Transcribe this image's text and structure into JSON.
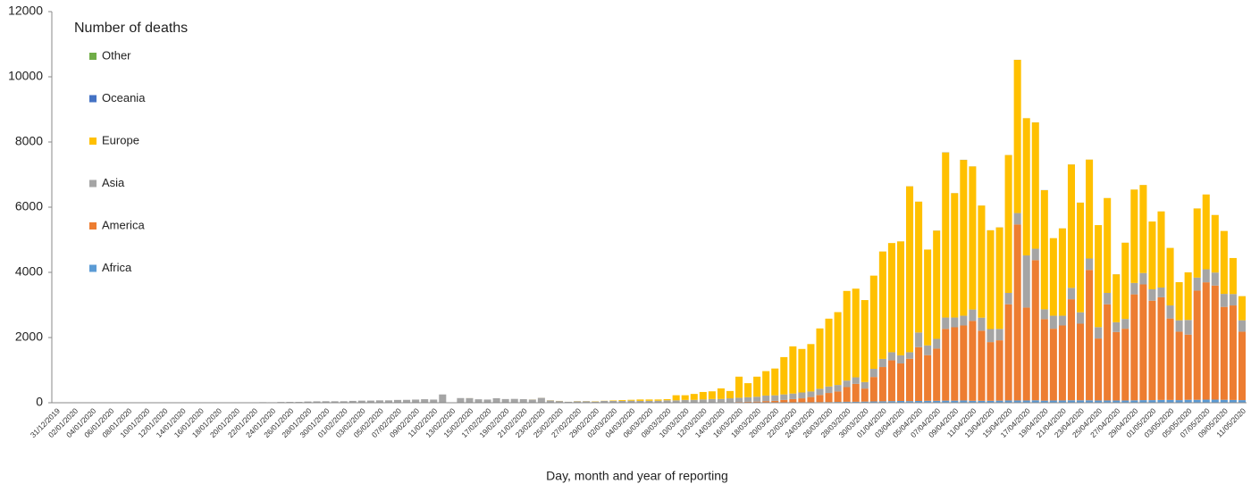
{
  "chart_data": {
    "type": "stacked-bar",
    "legend_title": "Number of deaths",
    "x_label": "Day, month and year of reporting",
    "ylim": [
      0,
      12000
    ],
    "yticks": [
      0,
      2000,
      4000,
      6000,
      8000,
      10000,
      12000
    ],
    "grid": false,
    "legend": "top-left",
    "categories": [
      "31/12/2019",
      null,
      "02/01/2020",
      null,
      "04/01/2020",
      null,
      "06/01/2020",
      null,
      "08/01/2020",
      null,
      "10/01/2020",
      null,
      "12/01/2020",
      null,
      "14/01/2020",
      null,
      "16/01/2020",
      null,
      "18/01/2020",
      null,
      "20/01/2020",
      null,
      "22/01/2020",
      null,
      "24/01/2020",
      null,
      "26/01/2020",
      null,
      "28/01/2020",
      null,
      "30/01/2020",
      null,
      "01/02/2020",
      null,
      "03/02/2020",
      null,
      "05/02/2020",
      null,
      "07/02/2020",
      null,
      "09/02/2020",
      null,
      "11/02/2020",
      null,
      "13/02/2020",
      null,
      "15/02/2020",
      null,
      "17/02/2020",
      null,
      "19/02/2020",
      null,
      "21/02/2020",
      null,
      "23/02/2020",
      null,
      "25/02/2020",
      null,
      "27/02/2020",
      null,
      "29/02/2020",
      null,
      "02/03/2020",
      null,
      "04/03/2020",
      null,
      "06/03/2020",
      null,
      "08/03/2020",
      null,
      "10/03/2020",
      null,
      "12/03/2020",
      null,
      "14/03/2020",
      null,
      "16/03/2020",
      null,
      "18/03/2020",
      null,
      "20/03/2020",
      null,
      "22/03/2020",
      null,
      "24/03/2020",
      null,
      "26/03/2020",
      null,
      "28/03/2020",
      null,
      "30/03/2020",
      null,
      "01/04/2020",
      null,
      "03/04/2020",
      null,
      "05/04/2020",
      null,
      "07/04/2020",
      null,
      "09/04/2020",
      null,
      "11/04/2020",
      null,
      "13/04/2020",
      null,
      "15/04/2020",
      null,
      "17/04/2020",
      null,
      "19/04/2020",
      null,
      "21/04/2020",
      null,
      "23/04/2020",
      null,
      "25/04/2020",
      null,
      "27/04/2020",
      null,
      "29/04/2020",
      null,
      "01/05/2020",
      null,
      "03/05/2020",
      null,
      "05/05/2020",
      null,
      "07/05/2020",
      null,
      "09/05/2020",
      null,
      "11/05/2020"
    ],
    "series": [
      {
        "name": "Africa",
        "color": "#5b9bd5",
        "values": [
          0,
          0,
          0,
          0,
          0,
          0,
          0,
          0,
          0,
          0,
          0,
          0,
          0,
          0,
          0,
          0,
          0,
          0,
          0,
          0,
          0,
          0,
          0,
          0,
          0,
          0,
          0,
          0,
          0,
          0,
          0,
          0,
          0,
          0,
          0,
          0,
          0,
          0,
          0,
          0,
          0,
          0,
          0,
          0,
          0,
          0,
          0,
          0,
          0,
          0,
          0,
          0,
          0,
          0,
          0,
          0,
          0,
          0,
          0,
          0,
          0,
          0,
          0,
          0,
          0,
          0,
          0,
          0,
          0,
          0,
          1,
          1,
          1,
          2,
          2,
          3,
          4,
          5,
          5,
          6,
          8,
          10,
          12,
          15,
          15,
          18,
          20,
          25,
          30,
          30,
          35,
          40,
          45,
          50,
          55,
          50,
          55,
          60,
          60,
          65,
          65,
          70,
          60,
          60,
          60,
          65,
          70,
          70,
          70,
          75,
          65,
          70,
          70,
          75,
          75,
          75,
          70,
          70,
          70,
          70,
          75,
          80,
          80,
          85,
          85,
          80,
          90,
          90,
          95,
          95,
          90,
          85,
          80
        ]
      },
      {
        "name": "America",
        "color": "#ed7d31",
        "values": [
          0,
          0,
          0,
          0,
          0,
          0,
          0,
          0,
          0,
          0,
          0,
          0,
          0,
          0,
          0,
          0,
          0,
          0,
          0,
          0,
          0,
          0,
          0,
          0,
          0,
          0,
          0,
          0,
          0,
          0,
          0,
          0,
          0,
          0,
          0,
          0,
          0,
          0,
          0,
          0,
          0,
          0,
          0,
          0,
          0,
          0,
          0,
          0,
          0,
          0,
          0,
          0,
          0,
          0,
          0,
          0,
          0,
          0,
          0,
          0,
          1,
          0,
          1,
          5,
          3,
          2,
          4,
          2,
          5,
          4,
          5,
          8,
          10,
          12,
          15,
          12,
          20,
          25,
          30,
          45,
          50,
          75,
          100,
          120,
          160,
          220,
          280,
          320,
          450,
          550,
          400,
          750,
          1050,
          1250,
          1150,
          1300,
          1650,
          1400,
          1600,
          2200,
          2250,
          2300,
          2450,
          2150,
          1800,
          1850,
          2950,
          5400,
          2850,
          4300,
          2500,
          2200,
          2300,
          3100,
          2350,
          4000,
          1900,
          2950,
          2100,
          2200,
          3250,
          3550,
          3050,
          3150,
          2500,
          2100,
          2000,
          3350,
          3600,
          3500,
          2850,
          2900,
          2100
        ]
      },
      {
        "name": "Asia",
        "color": "#a5a5a5",
        "values": [
          0,
          0,
          0,
          0,
          0,
          0,
          0,
          0,
          0,
          0,
          0,
          0,
          0,
          0,
          0,
          0,
          0,
          0,
          0,
          0,
          3,
          6,
          9,
          17,
          15,
          24,
          26,
          26,
          38,
          43,
          46,
          45,
          46,
          57,
          64,
          66,
          73,
          73,
          86,
          89,
          97,
          108,
          97,
          254,
          13,
          143,
          142,
          106,
          98,
          139,
          113,
          118,
          109,
          97,
          150,
          71,
          52,
          29,
          44,
          47,
          35,
          55,
          55,
          50,
          60,
          55,
          55,
          60,
          70,
          70,
          80,
          80,
          90,
          100,
          100,
          120,
          130,
          140,
          150,
          170,
          170,
          170,
          170,
          180,
          170,
          190,
          200,
          200,
          200,
          200,
          200,
          250,
          250,
          250,
          250,
          200,
          450,
          300,
          300,
          350,
          300,
          300,
          350,
          400,
          400,
          350,
          350,
          350,
          1600,
          350,
          300,
          400,
          300,
          350,
          350,
          350,
          350,
          350,
          300,
          300,
          350,
          350,
          350,
          300,
          400,
          350,
          450,
          400,
          400,
          400,
          400,
          350,
          350
        ]
      },
      {
        "name": "Europe",
        "color": "#ffc000",
        "values": [
          0,
          0,
          0,
          0,
          0,
          0,
          0,
          0,
          0,
          0,
          0,
          0,
          0,
          0,
          0,
          0,
          0,
          0,
          0,
          0,
          0,
          0,
          0,
          0,
          0,
          0,
          0,
          0,
          0,
          0,
          0,
          0,
          0,
          0,
          0,
          0,
          0,
          0,
          0,
          0,
          0,
          0,
          0,
          0,
          0,
          0,
          1,
          0,
          0,
          0,
          0,
          0,
          0,
          2,
          1,
          4,
          4,
          1,
          5,
          4,
          8,
          5,
          14,
          25,
          27,
          43,
          41,
          38,
          35,
          156,
          144,
          181,
          229,
          236,
          323,
          225,
          646,
          430,
          615,
          749,
          822,
          1145,
          1448,
          1335,
          1455,
          1852,
          2080,
          2235,
          2750,
          2720,
          2515,
          2860,
          3295,
          3350,
          3495,
          5090,
          4015,
          2940,
          3320,
          5065,
          3815,
          4780,
          4390,
          3440,
          3030,
          3115,
          4230,
          4700,
          4210,
          3875,
          3655,
          2380,
          2680,
          3785,
          3365,
          3035,
          3130,
          2910,
          1470,
          2340,
          2865,
          2700,
          2080,
          2335,
          1765,
          1170,
          1460,
          2120,
          2295,
          1765,
          1930,
          1105,
          740
        ]
      },
      {
        "name": "Oceania",
        "color": "#4472c4",
        "values": [
          0,
          0,
          0,
          0,
          0,
          0,
          0,
          0,
          0,
          0,
          0,
          0,
          0,
          0,
          0,
          0,
          0,
          0,
          0,
          0,
          0,
          0,
          0,
          0,
          0,
          0,
          0,
          0,
          0,
          0,
          0,
          0,
          0,
          0,
          0,
          0,
          0,
          0,
          0,
          0,
          0,
          0,
          0,
          0,
          0,
          0,
          0,
          0,
          0,
          0,
          0,
          0,
          0,
          0,
          0,
          0,
          0,
          0,
          0,
          0,
          0,
          0,
          0,
          0,
          0,
          0,
          0,
          0,
          0,
          0,
          0,
          0,
          0,
          0,
          0,
          0,
          0,
          0,
          0,
          0,
          0,
          0,
          0,
          0,
          0,
          0,
          0,
          0,
          0,
          0,
          0,
          0,
          1,
          0,
          1,
          2,
          1,
          0,
          3,
          5,
          2,
          4,
          2,
          1,
          2,
          2,
          1,
          2,
          1,
          2,
          3,
          0,
          1,
          2,
          1,
          1,
          0,
          1,
          2,
          1,
          1,
          1,
          0,
          1,
          1,
          0,
          0,
          1,
          0,
          1,
          0,
          0,
          1
        ]
      },
      {
        "name": "Other",
        "color": "#70ad47",
        "values": [
          0,
          0,
          0,
          0,
          0,
          0,
          0,
          0,
          0,
          0,
          0,
          0,
          0,
          0,
          0,
          0,
          0,
          0,
          0,
          0,
          0,
          0,
          0,
          0,
          0,
          0,
          0,
          0,
          0,
          0,
          0,
          0,
          0,
          0,
          0,
          0,
          0,
          0,
          0,
          0,
          0,
          0,
          0,
          0,
          0,
          0,
          0,
          0,
          0,
          0,
          0,
          0,
          0,
          0,
          0,
          0,
          0,
          0,
          0,
          0,
          0,
          0,
          0,
          0,
          0,
          0,
          0,
          0,
          0,
          0,
          0,
          0,
          0,
          0,
          0,
          0,
          0,
          0,
          0,
          0,
          0,
          0,
          0,
          0,
          0,
          0,
          0,
          0,
          0,
          0,
          0,
          0,
          0,
          0,
          0,
          0,
          0,
          0,
          0,
          0,
          0,
          0,
          0,
          0,
          0,
          0,
          0,
          0,
          0,
          0,
          0,
          0,
          0,
          0,
          0,
          0,
          0,
          0,
          0,
          0,
          0,
          0,
          0,
          0,
          0,
          0,
          0,
          0,
          0,
          0,
          0,
          0,
          0
        ]
      }
    ]
  }
}
